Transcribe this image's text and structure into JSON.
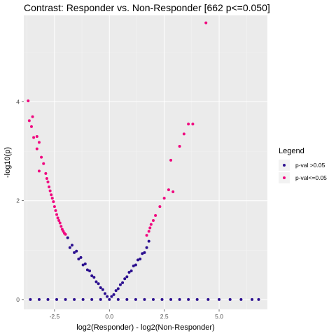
{
  "chart_data": {
    "type": "scatter",
    "title": "Contrast: Responder vs. Non-Responder [662 p<=0.050]",
    "xlabel": "log2(Responder) - log2(Non-Responder)",
    "ylabel": "-log10(p)",
    "xlim": [
      -3.9,
      7.2
    ],
    "ylim": [
      -0.2,
      5.75
    ],
    "x_ticks": [
      -2.5,
      0.0,
      2.5,
      5.0
    ],
    "x_tick_labels": [
      "-2.5",
      "0.0",
      "2.5",
      "5.0"
    ],
    "y_ticks": [
      0,
      2,
      4
    ],
    "y_tick_labels": [
      "0",
      "2",
      "4"
    ],
    "grid": true,
    "background": "#ebebeb",
    "legend": {
      "title": "Legend",
      "position": "right",
      "entries": [
        {
          "label": "p-val >0.05",
          "color": "#2b0f8f"
        },
        {
          "label": "p-val<=0.05",
          "color": "#f0087f"
        }
      ]
    },
    "series": [
      {
        "name": "p-val >0.05",
        "color": "#2b0f8f",
        "x": [
          -3.6,
          -3.2,
          -2.8,
          -2.4,
          -2.0,
          -1.6,
          -1.2,
          -0.8,
          -0.4,
          0.0,
          0.4,
          0.8,
          1.2,
          1.6,
          2.0,
          2.4,
          2.8,
          3.2,
          3.6,
          4.0,
          4.5,
          5.0,
          5.5,
          6.0,
          6.5,
          6.8,
          -1.9,
          -1.7,
          -1.5,
          -1.3,
          -1.1,
          -0.9,
          -0.7,
          -0.5,
          -0.3,
          -0.1,
          0.1,
          0.3,
          0.5,
          0.7,
          0.9,
          1.1,
          1.3,
          1.5,
          1.7,
          1.8,
          -1.8,
          -1.6,
          -1.4,
          -1.2,
          -1.0,
          -0.8,
          -0.6,
          -0.4,
          -0.2,
          0.2,
          0.4,
          0.6,
          0.8,
          1.0,
          1.2,
          1.4,
          1.6
        ],
        "y": [
          0.0,
          0.0,
          0.0,
          0.0,
          0.0,
          0.0,
          0.0,
          0.0,
          0.0,
          0.0,
          0.0,
          0.0,
          0.0,
          0.0,
          0.0,
          0.0,
          0.0,
          0.0,
          0.0,
          0.0,
          0.0,
          0.0,
          0.0,
          0.0,
          0.0,
          0.0,
          1.25,
          1.1,
          0.98,
          0.85,
          0.72,
          0.58,
          0.45,
          0.32,
          0.2,
          0.06,
          0.06,
          0.18,
          0.3,
          0.42,
          0.55,
          0.68,
          0.8,
          0.93,
          1.05,
          1.18,
          1.05,
          0.95,
          0.82,
          0.7,
          0.6,
          0.48,
          0.36,
          0.24,
          0.12,
          0.1,
          0.22,
          0.34,
          0.46,
          0.58,
          0.7,
          0.82,
          0.95
        ]
      },
      {
        "name": "p-val<=0.05",
        "color": "#f0087f",
        "x": [
          -3.7,
          -3.65,
          -3.55,
          -3.45,
          -3.3,
          -3.2,
          -3.1,
          -3.0,
          -2.9,
          -2.85,
          -2.8,
          -2.75,
          -2.7,
          -2.65,
          -2.6,
          -2.55,
          -2.5,
          -2.45,
          -2.4,
          -2.35,
          -2.3,
          -2.25,
          -2.2,
          -2.15,
          -2.1,
          -2.05,
          -2.0,
          -3.5,
          -3.3,
          -3.2,
          1.7,
          1.8,
          1.85,
          1.9,
          2.0,
          2.1,
          2.3,
          2.5,
          2.7,
          2.8,
          2.9,
          3.2,
          3.4,
          3.6,
          3.8,
          4.4
        ],
        "y": [
          4.02,
          3.62,
          3.5,
          3.28,
          3.3,
          3.18,
          2.88,
          2.75,
          2.55,
          2.45,
          2.38,
          2.28,
          2.2,
          2.12,
          2.05,
          1.98,
          1.88,
          1.8,
          1.72,
          1.65,
          1.6,
          1.55,
          1.48,
          1.42,
          1.38,
          1.34,
          1.32,
          3.7,
          3.05,
          2.6,
          1.3,
          1.38,
          1.45,
          1.52,
          1.6,
          1.7,
          1.88,
          2.05,
          2.22,
          2.82,
          2.18,
          3.1,
          3.35,
          3.55,
          3.55,
          5.6
        ]
      }
    ]
  }
}
